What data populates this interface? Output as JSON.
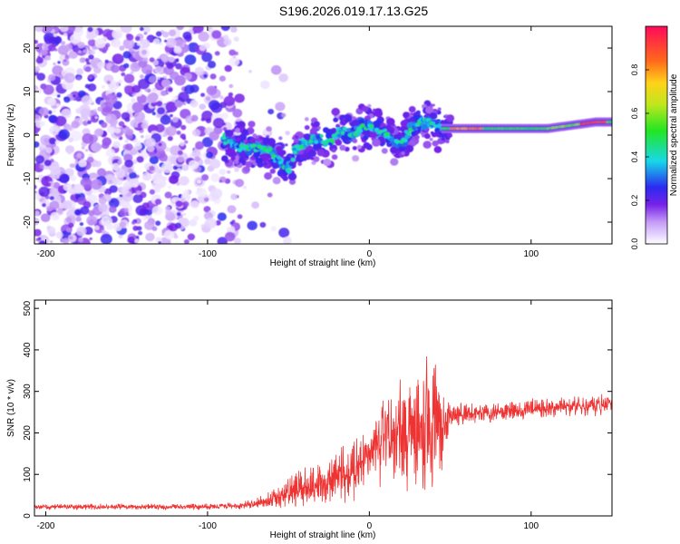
{
  "title": "S196.2026.019.17.13.G25",
  "chart_data": [
    {
      "type": "heatmap",
      "xlabel": "Height of straight line (km)",
      "ylabel": "Frequency (Hz)",
      "xlim": [
        -207,
        150
      ],
      "ylim": [
        -25,
        25
      ],
      "xticks": [
        -200,
        -100,
        0,
        100
      ],
      "yticks": [
        -20,
        -10,
        0,
        10,
        20
      ],
      "colorbar": {
        "label": "Normalized spectral amplitude",
        "range": [
          0,
          1
        ],
        "ticks": [
          "0.0",
          "0.2",
          "0.4",
          "0.6",
          "0.8"
        ]
      },
      "ridge": {
        "x": [
          -90,
          -80,
          -70,
          -60,
          -55,
          -50,
          -45,
          -40,
          -35,
          -30,
          -25,
          -20,
          -15,
          -10,
          -5,
          0,
          5,
          10,
          15,
          20,
          25,
          30,
          35,
          40,
          45,
          50,
          60,
          70,
          80,
          90,
          100,
          110,
          120,
          130,
          140,
          150
        ],
        "freq": [
          -1,
          -3,
          -3,
          -4,
          -6,
          -8,
          -3,
          -2,
          -1,
          -1,
          -2,
          0,
          1,
          0,
          2,
          2,
          1,
          0,
          -1,
          -2,
          1,
          3,
          3,
          3,
          1.5,
          1.5,
          1.5,
          1.5,
          1.5,
          1.5,
          1.5,
          1.5,
          2,
          2.5,
          3,
          3
        ]
      }
    },
    {
      "type": "line",
      "xlabel": "Height of straight line (km)",
      "ylabel": "SNR (10 * v/v)",
      "xlim": [
        -207,
        150
      ],
      "ylim": [
        0,
        520
      ],
      "xticks": [
        -200,
        -100,
        0,
        100
      ],
      "yticks": [
        0,
        100,
        200,
        300,
        400,
        500
      ],
      "color": "#ee3333",
      "series": [
        {
          "name": "SNR",
          "x": [
            -207,
            -180,
            -150,
            -120,
            -100,
            -80,
            -70,
            -60,
            -50,
            -40,
            -30,
            -20,
            -10,
            0,
            10,
            20,
            25,
            30,
            35,
            40,
            45,
            50,
            60,
            70,
            80,
            90,
            100,
            110,
            120,
            130,
            140,
            150
          ],
          "mean": [
            22,
            22,
            22,
            22,
            22,
            25,
            30,
            40,
            55,
            70,
            80,
            95,
            110,
            150,
            180,
            200,
            210,
            220,
            230,
            220,
            220,
            240,
            245,
            250,
            250,
            255,
            258,
            260,
            262,
            265,
            268,
            270
          ],
          "spread": [
            8,
            8,
            8,
            8,
            8,
            10,
            15,
            25,
            40,
            50,
            60,
            70,
            80,
            90,
            120,
            150,
            160,
            180,
            200,
            170,
            120,
            40,
            30,
            28,
            28,
            28,
            28,
            28,
            28,
            28,
            28,
            28
          ]
        }
      ]
    }
  ]
}
